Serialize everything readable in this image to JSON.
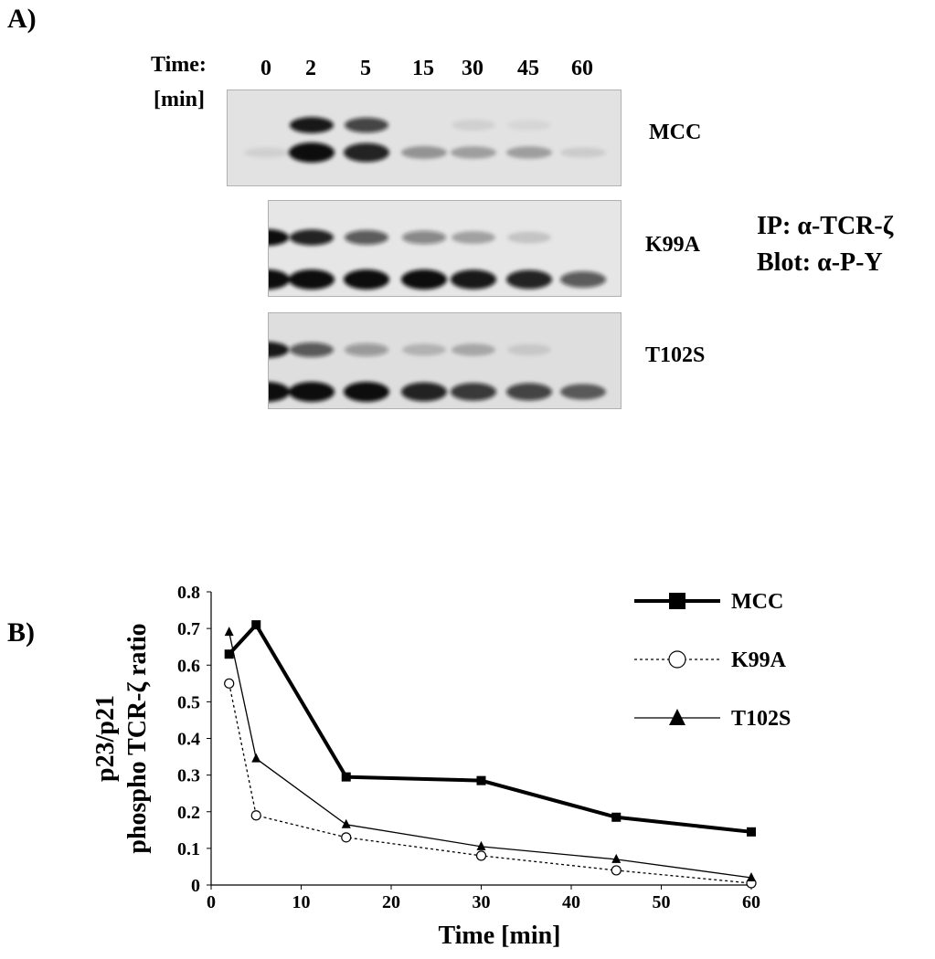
{
  "panel_a": {
    "label": "A)",
    "time_label_line1": "Time:",
    "time_label_line2": "[min]",
    "lanes": [
      "0",
      "2",
      "5",
      "15",
      "30",
      "45",
      "60"
    ],
    "blots": [
      {
        "name": "MCC",
        "p23": [
          0.0,
          0.95,
          0.75,
          0.0,
          0.08,
          0.05,
          0.0
        ],
        "p21": [
          0.08,
          1.0,
          0.9,
          0.35,
          0.3,
          0.3,
          0.1
        ]
      },
      {
        "name": "K99A",
        "p23": [
          1.0,
          0.9,
          0.65,
          0.45,
          0.3,
          0.15,
          0.0
        ],
        "p21": [
          1.0,
          1.0,
          1.0,
          1.0,
          0.95,
          0.9,
          0.65
        ]
      },
      {
        "name": "T102S",
        "p23": [
          0.95,
          0.65,
          0.35,
          0.2,
          0.25,
          0.1,
          0.0
        ],
        "p21": [
          1.0,
          1.0,
          1.0,
          0.9,
          0.8,
          0.75,
          0.6
        ]
      }
    ],
    "ip_line": "IP: α-TCR-ζ",
    "blot_line": "Blot: α-P-Y"
  },
  "panel_b": {
    "label": "B)"
  },
  "chart_data": {
    "type": "line",
    "title": "",
    "xlabel": "Time [min]",
    "ylabel_line1": "p23/p21",
    "ylabel_line2": "phospho TCR-ζ ratio",
    "xlim": [
      0,
      60
    ],
    "ylim": [
      0,
      0.8
    ],
    "xticks": [
      0,
      10,
      20,
      30,
      40,
      50,
      60
    ],
    "yticks": [
      0,
      0.1,
      0.2,
      0.3,
      0.4,
      0.5,
      0.6,
      0.7,
      0.8
    ],
    "legend_position": "top-right",
    "series": [
      {
        "name": "MCC",
        "marker": "square",
        "line": "thick-solid",
        "x": [
          2,
          5,
          15,
          30,
          45,
          60
        ],
        "y": [
          0.63,
          0.71,
          0.295,
          0.285,
          0.185,
          0.145
        ]
      },
      {
        "name": "K99A",
        "marker": "open-circle",
        "line": "dotted",
        "x": [
          2,
          5,
          15,
          30,
          45,
          60
        ],
        "y": [
          0.55,
          0.19,
          0.13,
          0.08,
          0.04,
          0.005
        ]
      },
      {
        "name": "T102S",
        "marker": "triangle",
        "line": "thin-solid",
        "x": [
          2,
          5,
          15,
          30,
          45,
          60
        ],
        "y": [
          0.69,
          0.345,
          0.165,
          0.105,
          0.07,
          0.02
        ]
      }
    ]
  }
}
